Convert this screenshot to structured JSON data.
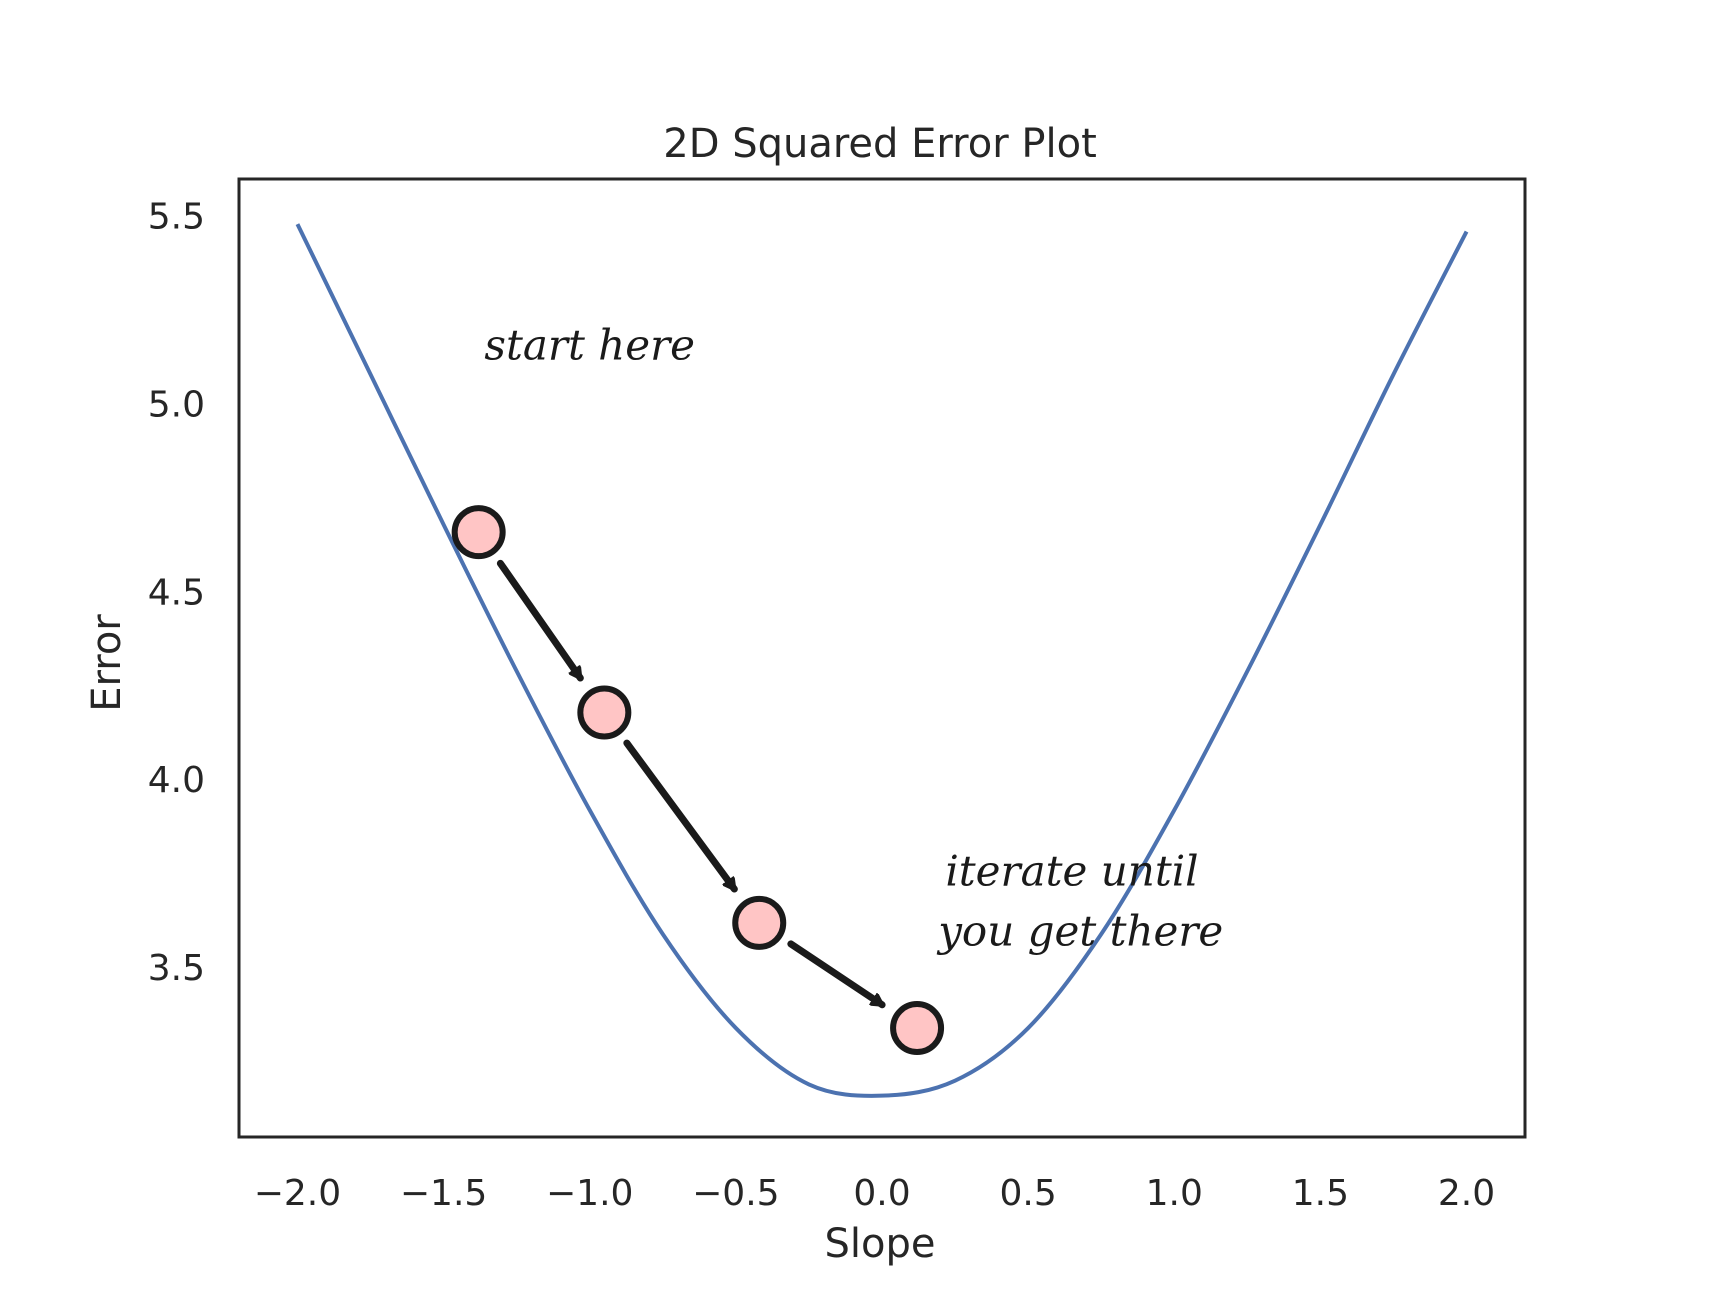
{
  "chart_data": {
    "type": "line",
    "title": "2D Squared Error Plot",
    "xlabel": "Slope",
    "ylabel": "Error",
    "xlim": [
      -2.2,
      2.2
    ],
    "ylim": [
      3.05,
      5.6
    ],
    "xticks": [
      -2.0,
      -1.5,
      -1.0,
      -0.5,
      0.0,
      0.5,
      1.0,
      1.5,
      2.0
    ],
    "xtick_labels": [
      "−2.0",
      "−1.5",
      "−1.0",
      "−0.5",
      "0.0",
      "0.5",
      "1.0",
      "1.5",
      "2.0"
    ],
    "yticks": [
      3.5,
      4.0,
      4.5,
      5.0,
      5.5
    ],
    "ytick_labels": [
      "3.5",
      "4.0",
      "4.5",
      "5.0",
      "5.5"
    ],
    "grid": false,
    "series": [
      {
        "color": "#4c72b0",
        "x": [
          -2.0,
          -1.75,
          -1.5,
          -1.25,
          -1.0,
          -0.75,
          -0.5,
          -0.25,
          0.0,
          0.25,
          0.5,
          0.75,
          1.0,
          1.25,
          1.5,
          1.75,
          2.0
        ],
        "y": [
          5.48,
          5.08,
          4.68,
          4.29,
          3.92,
          3.59,
          3.34,
          3.19,
          3.16,
          3.2,
          3.34,
          3.59,
          3.92,
          4.29,
          4.68,
          5.08,
          5.46
        ]
      }
    ],
    "iteration_points": {
      "fill": "#ffc5c5",
      "stroke": "#1a1a1a",
      "x": [
        -1.38,
        -0.95,
        -0.42,
        0.12
      ],
      "y": [
        4.66,
        4.18,
        3.62,
        3.34
      ]
    },
    "annotations": [
      {
        "text": "start here",
        "x": -1.0,
        "y": 5.12
      },
      {
        "text": "iterate until",
        "x": 0.65,
        "y": 3.72
      },
      {
        "text": "you get there",
        "x": 0.68,
        "y": 3.56
      }
    ]
  }
}
